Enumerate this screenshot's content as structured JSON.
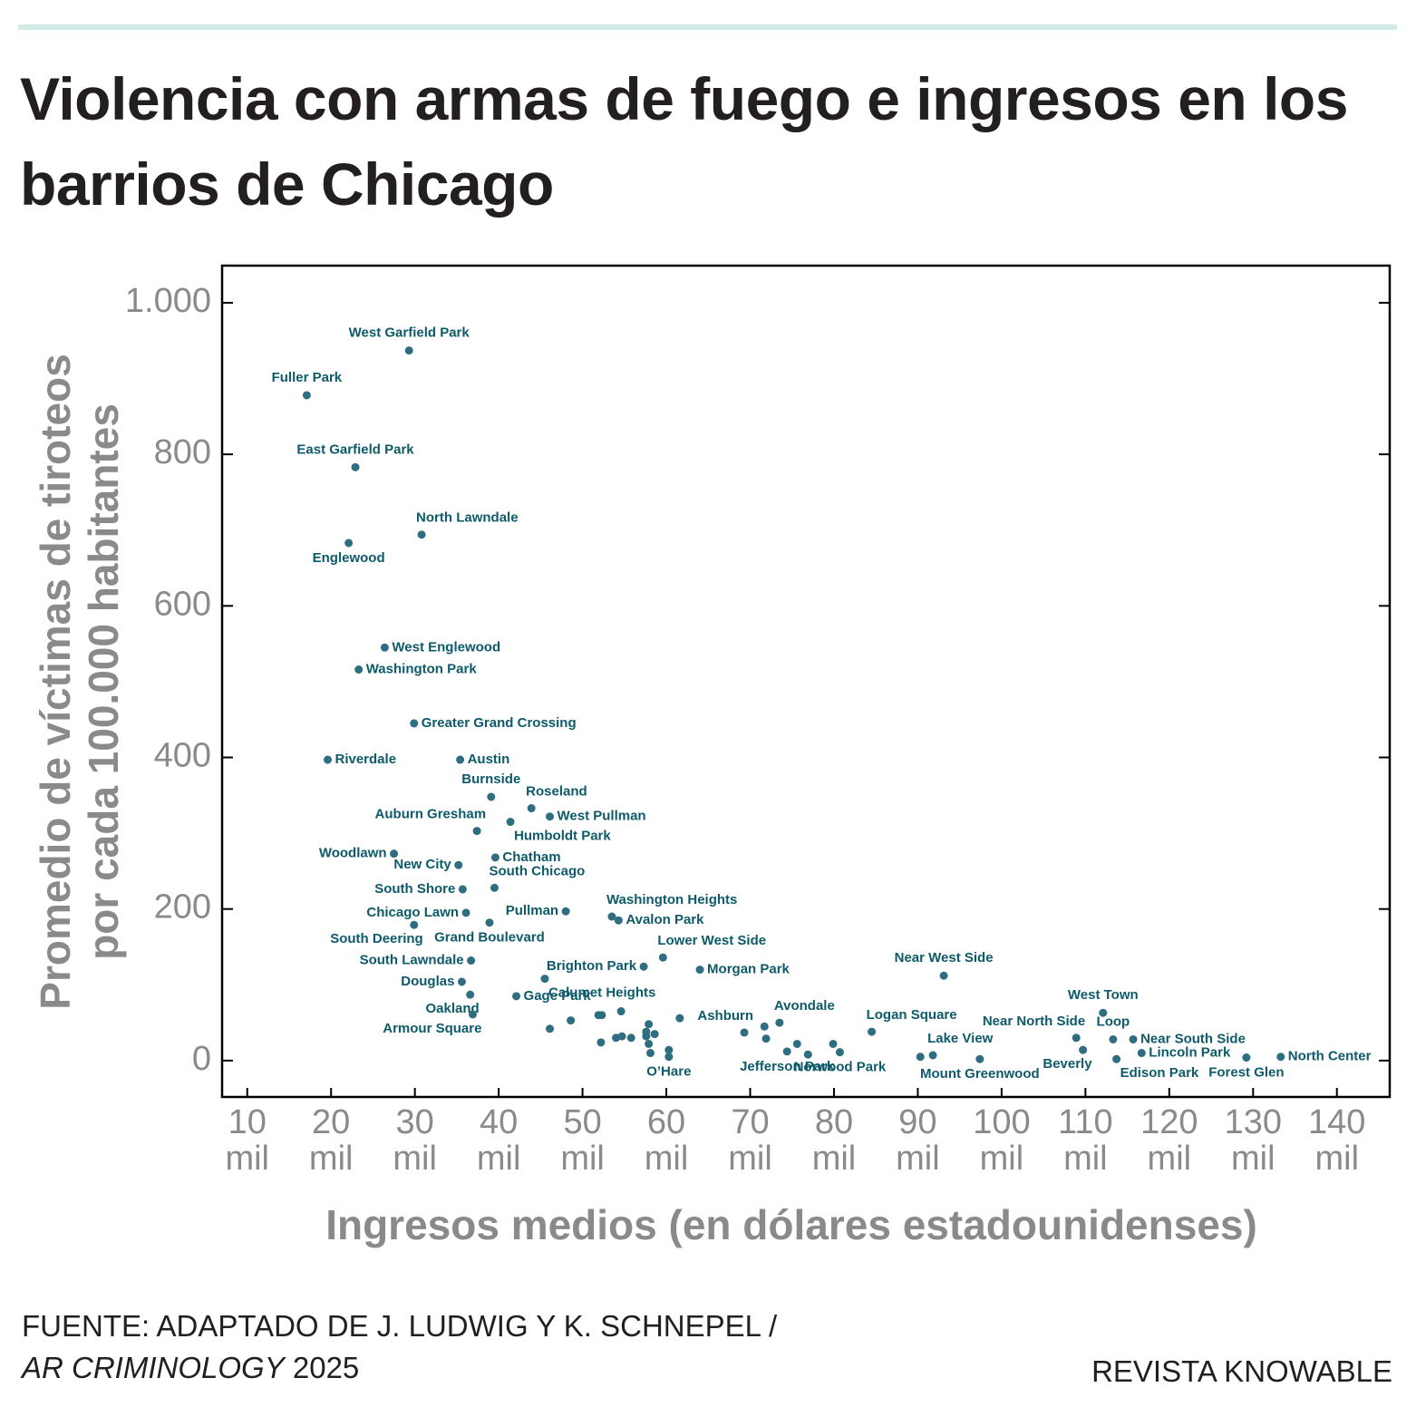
{
  "chart_data": {
    "type": "scatter",
    "title": "Violencia con armas de fuego e ingresos en los barrios de Chicago",
    "ylabel": [
      "Promedio de víctimas de tiroteos",
      "por cada 100.000 habitantes"
    ],
    "xlabel": "Ingresos medios (en dólares estadounidenses)",
    "source": {
      "line1": "FUENTE: ADAPTADO DE J. LUDWIG Y K. SCHNEPEL /",
      "journal": "AR CRIMINOLOGY",
      "year": "2025"
    },
    "credit": "REVISTA KNOWABLE",
    "color": "#2e6e80",
    "label_color": "#0d5a6b",
    "xlim": [
      7000,
      146300
    ],
    "ylim": [
      -48,
      1049
    ],
    "xticks": [
      {
        "value": 10000,
        "label": "10 mil"
      },
      {
        "value": 20000,
        "label": "20 mil"
      },
      {
        "value": 30000,
        "label": "30 mil"
      },
      {
        "value": 40000,
        "label": "40 mil"
      },
      {
        "value": 50000,
        "label": "50 mil"
      },
      {
        "value": 60000,
        "label": "60 mil"
      },
      {
        "value": 70000,
        "label": "70 mil"
      },
      {
        "value": 80000,
        "label": "80 mil"
      },
      {
        "value": 90000,
        "label": "90 mil"
      },
      {
        "value": 100000,
        "label": "100 mil"
      },
      {
        "value": 110000,
        "label": "110 mil"
      },
      {
        "value": 120000,
        "label": "120 mil"
      },
      {
        "value": 130000,
        "label": "130 mil"
      },
      {
        "value": 140000,
        "label": "140 mil"
      }
    ],
    "yticks": [
      0,
      200,
      400,
      600,
      800,
      {
        "value": 1000,
        "label": "1.000"
      }
    ],
    "labels": [
      "West Garfield Park",
      "Fuller Park",
      "East Garfield Park",
      "North Lawndale",
      "Englewood",
      "West Englewood",
      "Washington Park",
      "Greater Grand Crossing",
      "Riverdale",
      "Austin",
      "Burnside",
      "Roseland",
      "West Pullman",
      "Auburn Gresham",
      "Humboldt Park",
      "Woodlawn",
      "Chatham",
      "New City",
      "South Shore",
      "South Chicago",
      "Chicago Lawn",
      "Pullman",
      "Washington Heights",
      "Avalon Park",
      "South Deering",
      "Grand Boulevard",
      "Lower West Side",
      "Brighton Park",
      "Morgan Park",
      "South Lawndale",
      "Calumet Heights",
      "Douglas",
      "Near West Side",
      "Oakland",
      "Gage Park",
      "Armour Square",
      "Ashburn",
      "Avondale",
      "Logan Square",
      "West Town",
      "Near North Side",
      "Loop",
      "Near South Side",
      "Lincoln Park",
      "Lake View",
      "Beverly",
      "Edison Park",
      "Mount Greenwood",
      "North Center",
      "Forest Glen",
      "Jefferson Park",
      "Norwood Park",
      "O’Hare",
      null,
      null,
      null,
      null,
      null,
      null,
      null,
      null,
      null,
      null,
      null,
      null,
      null,
      null,
      null,
      null,
      null,
      null,
      null,
      null,
      null,
      null,
      null
    ],
    "x": [
      29300,
      17100,
      22900,
      30800,
      22100,
      26400,
      23300,
      29900,
      19600,
      35400,
      39100,
      43900,
      46100,
      37400,
      41400,
      27500,
      39600,
      35200,
      35700,
      39500,
      36100,
      48000,
      53500,
      54300,
      29900,
      38900,
      59600,
      57300,
      64000,
      36700,
      45500,
      35600,
      93100,
      36600,
      42100,
      36900,
      69300,
      73500,
      84500,
      112100,
      108900,
      113300,
      115700,
      116700,
      91800,
      109700,
      113700,
      97400,
      133300,
      129200,
      74400,
      80700,
      60300,
      90300,
      76900,
      75600,
      79900,
      71900,
      71700,
      61600,
      60300,
      57900,
      58600,
      57600,
      57600,
      57900,
      58100,
      54600,
      55800,
      54000,
      54700,
      52200,
      51900,
      52300,
      48600,
      46100
    ],
    "values": [
      937,
      878,
      783,
      694,
      683,
      545,
      516,
      445,
      397,
      397,
      348,
      333,
      322,
      303,
      315,
      273,
      268,
      258,
      226,
      228,
      195,
      197,
      190,
      185,
      179,
      182,
      136,
      124,
      120,
      132,
      108,
      104,
      112,
      87,
      85,
      61,
      37,
      50,
      38,
      63,
      30,
      28,
      28,
      10,
      7,
      14,
      2,
      2,
      5,
      4,
      12,
      11,
      5,
      5,
      8,
      22,
      22,
      29,
      45,
      56,
      14,
      48,
      35,
      38,
      32,
      22,
      10,
      65,
      30,
      30,
      32,
      24,
      60,
      60,
      53,
      42
    ]
  }
}
